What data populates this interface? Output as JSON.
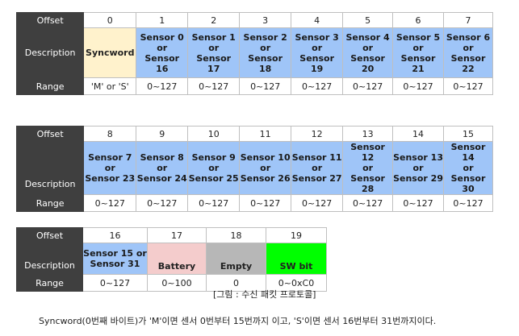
{
  "labels": {
    "offset": "Offset",
    "description": "Description",
    "range": "Range"
  },
  "table1": {
    "offsets": [
      "0",
      "1",
      "2",
      "3",
      "4",
      "5",
      "6",
      "7"
    ],
    "descriptions": [
      {
        "type": "sync",
        "lines": [
          "Syncword"
        ]
      },
      {
        "type": "sensor",
        "lines": [
          "Sensor 0",
          "or",
          "Sensor",
          "16"
        ]
      },
      {
        "type": "sensor",
        "lines": [
          "Sensor 1",
          "or",
          "Sensor",
          "17"
        ]
      },
      {
        "type": "sensor",
        "lines": [
          "Sensor 2",
          "or",
          "Sensor",
          "18"
        ]
      },
      {
        "type": "sensor",
        "lines": [
          "Sensor 3",
          "or",
          "Sensor",
          "19"
        ]
      },
      {
        "type": "sensor",
        "lines": [
          "Sensor 4",
          "or",
          "Sensor",
          "20"
        ]
      },
      {
        "type": "sensor",
        "lines": [
          "Sensor 5",
          "or",
          "Sensor",
          "21"
        ]
      },
      {
        "type": "sensor",
        "lines": [
          "Sensor 6",
          "or",
          "Sensor",
          "22"
        ]
      }
    ],
    "ranges": [
      "'M' or 'S'",
      "0~127",
      "0~127",
      "0~127",
      "0~127",
      "0~127",
      "0~127",
      "0~127"
    ]
  },
  "table2": {
    "offsets": [
      "8",
      "9",
      "10",
      "11",
      "12",
      "13",
      "14",
      "15"
    ],
    "descriptions": [
      {
        "type": "sensor",
        "lines": [
          "Sensor 7",
          "or",
          "Sensor 23"
        ]
      },
      {
        "type": "sensor",
        "lines": [
          "Sensor 8",
          "or",
          "Sensor 24"
        ]
      },
      {
        "type": "sensor",
        "lines": [
          "Sensor 9",
          "or",
          "Sensor 25"
        ]
      },
      {
        "type": "sensor",
        "lines": [
          "Sensor 10",
          "or",
          "Sensor 26"
        ]
      },
      {
        "type": "sensor",
        "lines": [
          "Sensor 11",
          "or",
          "Sensor 27"
        ]
      },
      {
        "type": "sensor",
        "lines": [
          "Sensor 12",
          "or",
          "Sensor 28"
        ]
      },
      {
        "type": "sensor",
        "lines": [
          "Sensor 13",
          "or",
          "Sensor 29"
        ]
      },
      {
        "type": "sensor",
        "lines": [
          "Sensor 14",
          "or",
          "Sensor 30"
        ]
      }
    ],
    "ranges": [
      "0~127",
      "0~127",
      "0~127",
      "0~127",
      "0~127",
      "0~127",
      "0~127",
      "0~127"
    ]
  },
  "table3": {
    "offsets": [
      "16",
      "17",
      "18",
      "19"
    ],
    "descriptions": [
      {
        "type": "sensor",
        "lines": [
          "Sensor 15 or",
          "Sensor 31"
        ]
      },
      {
        "type": "battery",
        "lines": [
          "Battery"
        ]
      },
      {
        "type": "empty",
        "lines": [
          "Empty"
        ]
      },
      {
        "type": "swbit",
        "lines": [
          "SW bit"
        ]
      }
    ],
    "ranges": [
      "0~127",
      "0~100",
      "0",
      "0~0xC0"
    ]
  },
  "caption": "[그림 : 수신 패킷 프로토콜]",
  "footnote": "Syncword(0번째 바이트)가 'M'이면 센서 0번부터 15번까지 이고, 'S'이면 센서 16번부터 31번까지이다.",
  "colors": {
    "header_bg": "#3f3f3f",
    "syncword_bg": "#fff2cc",
    "sensor_bg": "#9fc5f8",
    "battery_bg": "#f4cccc",
    "empty_bg": "#b7b7b7",
    "swbit_bg": "#00ff00"
  }
}
